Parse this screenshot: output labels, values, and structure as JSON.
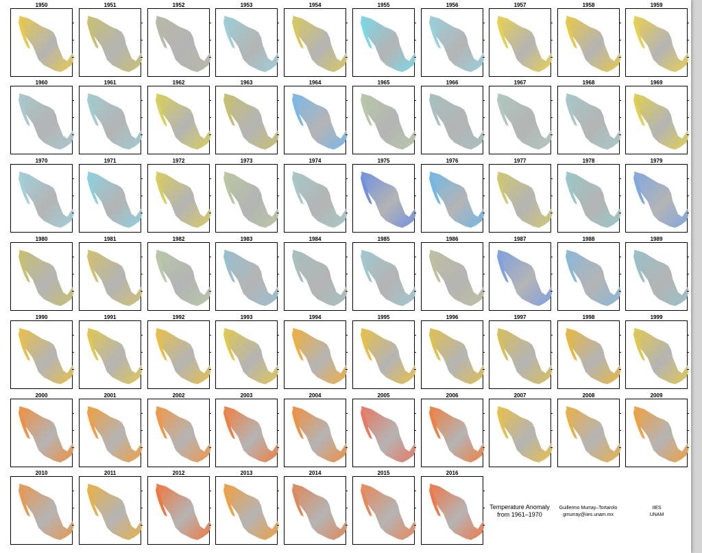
{
  "chart_data": {
    "type": "small-multiples map grid",
    "panels": [
      "1950",
      "1951",
      "1952",
      "1953",
      "1954",
      "1955",
      "1956",
      "1957",
      "1958",
      "1959",
      "1960",
      "1961",
      "1962",
      "1963",
      "1964",
      "1965",
      "1966",
      "1967",
      "1968",
      "1969",
      "1970",
      "1971",
      "1972",
      "1973",
      "1974",
      "1975",
      "1976",
      "1977",
      "1978",
      "1979",
      "1980",
      "1981",
      "1982",
      "1983",
      "1984",
      "1985",
      "1986",
      "1987",
      "1988",
      "1989",
      "1990",
      "1991",
      "1992",
      "1993",
      "1994",
      "1995",
      "1996",
      "1997",
      "1998",
      "1999",
      "2000",
      "2001",
      "2002",
      "2003",
      "2004",
      "2005",
      "2006",
      "2007",
      "2008",
      "2009",
      "2010",
      "2011",
      "2012",
      "2013",
      "2014",
      "2015",
      "2016"
    ],
    "dominant_anomaly_color": [
      "#e8c94a",
      "#c8c070",
      "#b8b8a8",
      "#9ccfd8",
      "#d8c860",
      "#7ad8e8",
      "#98d0dc",
      "#e8d050",
      "#e8c848",
      "#e8d050",
      "#a8c8cc",
      "#a0ccd0",
      "#d8d058",
      "#c8c070",
      "#7ab8e8",
      "#b8c8a8",
      "#a8c0c0",
      "#b0c8c0",
      "#a8c8c8",
      "#e0d050",
      "#a0d0dc",
      "#8cd0e0",
      "#d8cc60",
      "#b8c8a0",
      "#a8c8c8",
      "#7090e0",
      "#70b8e8",
      "#d0c870",
      "#98c8c8",
      "#80a8e0",
      "#c8c070",
      "#d0c070",
      "#b8c8a8",
      "#98c0d0",
      "#a8c0c0",
      "#a0c8d0",
      "#c0c0a0",
      "#80a0e0",
      "#8ab8d8",
      "#98c0c8",
      "#e8c048",
      "#e0c850",
      "#e8c048",
      "#e0c850",
      "#f0b040",
      "#e8c048",
      "#e0c050",
      "#d8c058",
      "#e8b840",
      "#e0c850",
      "#f09040",
      "#f0a040",
      "#f09848",
      "#f08040",
      "#f09040",
      "#e87860",
      "#f08040",
      "#e8c048",
      "#e8b048",
      "#f0a040",
      "#e89850",
      "#e8b048",
      "#f07840",
      "#f0a040",
      "#e08858",
      "#e88858",
      "#f07848"
    ],
    "colors": {
      "cold_strong": "#3850e0",
      "cold": "#58e0f0",
      "neutral": "#b4b4b4",
      "warm": "#f0e040",
      "warm_strong": "#f08030",
      "hot": "#e84030"
    }
  },
  "info": {
    "title_line1": "Temperature Anomaly",
    "title_line2": "from 1961–1970",
    "author_name": "Guillermo Murray–Tortarolo",
    "author_email": "gmurray@iies.unam.mx",
    "inst_line1": "IIES",
    "inst_line2": "UNAM"
  }
}
